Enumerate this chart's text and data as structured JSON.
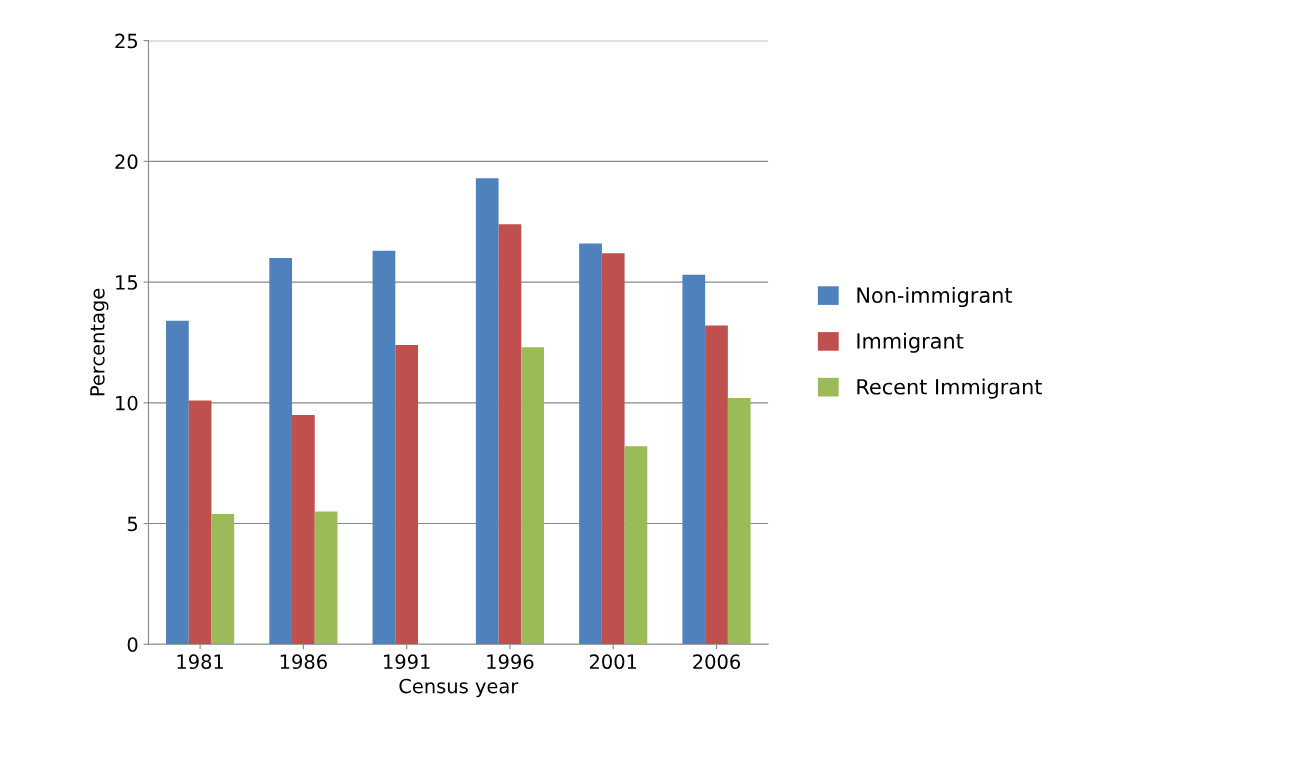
{
  "chart_data": {
    "type": "bar",
    "xlabel": "Census year",
    "ylabel": "Percentage",
    "categories": [
      "1981",
      "1986",
      "1991",
      "1996",
      "2001",
      "2006"
    ],
    "series": [
      {
        "name": "Non-immigrant",
        "color": "#4f81bd",
        "values": [
          13.4,
          16.0,
          16.3,
          19.3,
          16.6,
          15.3
        ]
      },
      {
        "name": "Immigrant",
        "color": "#c0504d",
        "values": [
          10.1,
          9.5,
          12.4,
          17.4,
          16.2,
          13.2
        ]
      },
      {
        "name": "Recent Immigrant",
        "color": "#9bbb59",
        "values": [
          5.4,
          5.5,
          null,
          12.3,
          8.2,
          10.2
        ]
      }
    ],
    "ylim": [
      0,
      25
    ],
    "yticks": [
      0,
      5,
      10,
      15,
      20,
      25
    ],
    "grid": "y",
    "legend": "right"
  }
}
